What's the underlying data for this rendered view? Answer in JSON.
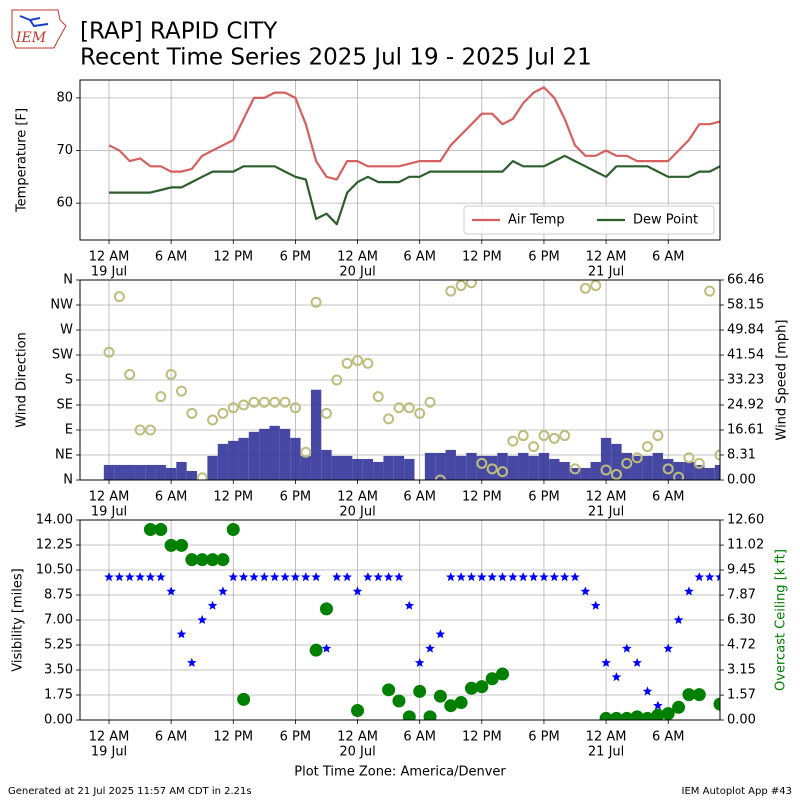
{
  "header": {
    "logo": "IEM",
    "title": "[RAP] RAPID CITY",
    "subtitle": "Recent Time Series 2025 Jul 19 - 2025 Jul 21"
  },
  "footer": {
    "left": "Generated at 21 Jul 2025 11:57 AM CDT in 2.21s",
    "right": "IEM Autoplot App #43"
  },
  "chart_data": [
    {
      "type": "line",
      "ylabel": "Temperature [F]",
      "grid": true,
      "legend": "lower right",
      "xlim": [
        -2.8,
        59
      ],
      "xticks": [
        {
          "value": 0,
          "label": "12 AM"
        },
        {
          "value": 6,
          "label": "6 AM"
        },
        {
          "value": 12,
          "label": "12 PM"
        },
        {
          "value": 18,
          "label": "6 PM"
        },
        {
          "value": 24,
          "label": "12 AM"
        },
        {
          "value": 30,
          "label": "6 AM"
        },
        {
          "value": 36,
          "label": "12 PM"
        },
        {
          "value": 42,
          "label": "6 PM"
        },
        {
          "value": 48,
          "label": "12 AM"
        },
        {
          "value": 54,
          "label": "6 AM"
        }
      ],
      "xtick_dates": [
        {
          "value": 0,
          "label": "19 Jul"
        },
        {
          "value": 24,
          "label": "20 Jul"
        },
        {
          "value": 48,
          "label": "21 Jul"
        }
      ],
      "ylim": [
        53,
        83.4
      ],
      "yticks": [
        60,
        70,
        80
      ],
      "x": [
        0,
        1,
        2,
        3,
        4,
        5,
        6,
        7,
        8,
        9,
        10,
        11,
        12,
        13,
        14,
        15,
        16,
        17,
        18,
        19,
        20,
        21,
        22,
        23,
        24,
        25,
        26,
        27,
        28,
        29,
        30,
        31,
        32,
        33,
        34,
        35,
        36,
        37,
        38,
        39,
        40,
        41,
        42,
        43,
        44,
        45,
        46,
        47,
        48,
        49,
        50,
        51,
        52,
        53,
        54,
        55,
        56,
        57,
        58,
        59
      ],
      "series": [
        {
          "name": "Air Temp",
          "color": "#d65f5f",
          "values": [
            71,
            70,
            68,
            68.5,
            67,
            67,
            66,
            66,
            66.5,
            69,
            70,
            71,
            72,
            76,
            80,
            80,
            81,
            81,
            80,
            75,
            68,
            65,
            64.5,
            68,
            68,
            67,
            67,
            67,
            67,
            67.5,
            68,
            68,
            68,
            71,
            73,
            75,
            77,
            77,
            75,
            76,
            79,
            81,
            82,
            80,
            76,
            71,
            69,
            69,
            70,
            69,
            69,
            68,
            68,
            68,
            68,
            70,
            72,
            75,
            75,
            75.5
          ]
        },
        {
          "name": "Dew Point",
          "color": "#2e5e2e",
          "values": [
            62,
            62,
            62,
            62,
            62,
            62.5,
            63,
            63,
            64,
            65,
            66,
            66,
            66,
            67,
            67,
            67,
            67,
            66,
            65,
            64.5,
            57,
            58,
            56,
            62,
            64,
            65,
            64,
            64,
            64,
            65,
            65,
            66,
            66,
            66,
            66,
            66,
            66,
            66,
            66,
            68,
            67,
            67,
            67,
            68,
            69,
            68,
            67,
            66,
            65,
            67,
            67,
            67,
            67,
            66,
            65,
            65,
            65,
            66,
            66,
            67
          ]
        }
      ]
    },
    {
      "type": "scatter",
      "ylabel": "Wind Direction",
      "y2label": "Wind Speed [mph]",
      "grid": true,
      "xlim": [
        -2.8,
        59
      ],
      "xticks": [
        {
          "value": 0,
          "label": "12 AM"
        },
        {
          "value": 6,
          "label": "6 AM"
        },
        {
          "value": 12,
          "label": "12 PM"
        },
        {
          "value": 18,
          "label": "6 PM"
        },
        {
          "value": 24,
          "label": "12 AM"
        },
        {
          "value": 30,
          "label": "6 AM"
        },
        {
          "value": 36,
          "label": "12 PM"
        },
        {
          "value": 42,
          "label": "6 PM"
        },
        {
          "value": 48,
          "label": "12 AM"
        },
        {
          "value": 54,
          "label": "6 AM"
        }
      ],
      "xtick_dates": [
        {
          "value": 0,
          "label": "19 Jul"
        },
        {
          "value": 24,
          "label": "20 Jul"
        },
        {
          "value": 48,
          "label": "21 Jul"
        }
      ],
      "ylim": [
        0,
        360
      ],
      "yticks": [
        {
          "value": 0,
          "label": "N"
        },
        {
          "value": 45,
          "label": "NE"
        },
        {
          "value": 90,
          "label": "E"
        },
        {
          "value": 135,
          "label": "SE"
        },
        {
          "value": 180,
          "label": "S"
        },
        {
          "value": 225,
          "label": "SW"
        },
        {
          "value": 270,
          "label": "W"
        },
        {
          "value": 315,
          "label": "NW"
        },
        {
          "value": 360,
          "label": "N"
        }
      ],
      "y2lim": [
        0,
        66.46
      ],
      "y2ticks": [
        {
          "value": 0,
          "label": "0.00"
        },
        8.31,
        16.61,
        24.92,
        33.23,
        41.54,
        49.84,
        58.15,
        66.46
      ],
      "x": [
        0,
        1,
        2,
        3,
        4,
        5,
        6,
        7,
        8,
        9,
        10,
        11,
        12,
        13,
        14,
        15,
        16,
        17,
        18,
        19,
        20,
        21,
        22,
        23,
        24,
        25,
        26,
        27,
        28,
        29,
        30,
        31,
        32,
        33,
        34,
        35,
        36,
        37,
        38,
        39,
        40,
        41,
        42,
        43,
        44,
        45,
        46,
        47,
        48,
        49,
        50,
        51,
        52,
        53,
        54,
        55,
        56,
        57,
        58,
        59
      ],
      "series": [
        {
          "marker": "bar",
          "axis": "y2",
          "color": "#33339a",
          "values": [
            5,
            5,
            5,
            5,
            5,
            5,
            4,
            6,
            3,
            0,
            8,
            12,
            13,
            14,
            16,
            17,
            18,
            17,
            14,
            8,
            30,
            10,
            8,
            8,
            7,
            7,
            6,
            8,
            8,
            7,
            0,
            9,
            9,
            10,
            8,
            9,
            8,
            8,
            9,
            8,
            9,
            8,
            9,
            7,
            6,
            4,
            4,
            6,
            14,
            12,
            9,
            8,
            8,
            9,
            7,
            6,
            6,
            5,
            4,
            5
          ]
        },
        {
          "marker": "circle",
          "color": "#bdbd7d",
          "values": [
            230,
            330,
            190,
            90,
            90,
            150,
            190,
            160,
            120,
            4,
            108,
            120,
            130,
            135,
            140,
            140,
            140,
            140,
            130,
            50,
            320,
            120,
            180,
            210,
            215,
            210,
            150,
            110,
            130,
            130,
            120,
            140,
            0,
            340,
            350,
            355,
            30,
            20,
            15,
            70,
            80,
            60,
            80,
            75,
            80,
            20,
            345,
            350,
            18,
            10,
            30,
            40,
            60,
            80,
            20,
            5,
            40,
            30,
            340,
            45
          ]
        }
      ]
    },
    {
      "type": "scatter",
      "ylabel": "Visibility [miles]",
      "y2label": "Overcast Ceiling [k ft]",
      "y2label_color": "#008000",
      "grid": true,
      "xlabel": "Plot Time Zone: America/Denver",
      "xlim": [
        -2.8,
        59
      ],
      "xticks": [
        {
          "value": 0,
          "label": "12 AM"
        },
        {
          "value": 6,
          "label": "6 AM"
        },
        {
          "value": 12,
          "label": "12 PM"
        },
        {
          "value": 18,
          "label": "6 PM"
        },
        {
          "value": 24,
          "label": "12 AM"
        },
        {
          "value": 30,
          "label": "6 AM"
        },
        {
          "value": 36,
          "label": "12 PM"
        },
        {
          "value": 42,
          "label": "6 PM"
        },
        {
          "value": 48,
          "label": "12 AM"
        },
        {
          "value": 54,
          "label": "6 AM"
        }
      ],
      "xtick_dates": [
        {
          "value": 0,
          "label": "19 Jul"
        },
        {
          "value": 24,
          "label": "20 Jul"
        },
        {
          "value": 48,
          "label": "21 Jul"
        }
      ],
      "ylim": [
        0,
        14
      ],
      "yticks": [
        {
          "value": 0,
          "label": "0.00"
        },
        1.75,
        {
          "value": 3.5,
          "label": "3.50"
        },
        5.25,
        {
          "value": 7,
          "label": "7.00"
        },
        8.75,
        {
          "value": 10.5,
          "label": "10.50"
        },
        12.25,
        {
          "value": 14,
          "label": "14.00"
        }
      ],
      "y2lim": [
        0,
        12.6
      ],
      "y2ticks": [
        {
          "value": 0,
          "label": "0.00"
        },
        1.57,
        3.15,
        4.72,
        {
          "value": 6.3,
          "label": "6.30"
        },
        7.87,
        9.45,
        11.02,
        {
          "value": 12.6,
          "label": "12.60"
        }
      ],
      "x": [
        0,
        1,
        2,
        3,
        4,
        5,
        6,
        7,
        8,
        9,
        10,
        11,
        12,
        13,
        14,
        15,
        16,
        17,
        18,
        19,
        20,
        21,
        22,
        23,
        24,
        25,
        26,
        27,
        28,
        29,
        30,
        31,
        32,
        33,
        34,
        35,
        36,
        37,
        38,
        39,
        40,
        41,
        42,
        43,
        44,
        45,
        46,
        47,
        48,
        49,
        50,
        51,
        52,
        53,
        54,
        55,
        56,
        57,
        58,
        59
      ],
      "series": [
        {
          "marker": "star",
          "color": "#0000ff",
          "values": [
            10,
            10,
            10,
            10,
            10,
            10,
            9,
            6,
            4,
            7,
            8,
            9,
            10,
            10,
            10,
            10,
            10,
            10,
            10,
            10,
            10,
            5,
            10,
            10,
            9,
            10,
            10,
            10,
            10,
            8,
            4,
            5,
            6,
            10,
            10,
            10,
            10,
            10,
            10,
            10,
            10,
            10,
            10,
            10,
            10,
            10,
            9,
            8,
            4,
            3,
            5,
            4,
            2,
            1,
            5,
            7,
            9,
            10,
            10,
            10
          ]
        },
        {
          "marker": "circle",
          "fill": true,
          "axis": "y2",
          "color": "#008000",
          "values": [
            null,
            null,
            null,
            null,
            12,
            12,
            11,
            11,
            10.1,
            10.1,
            10.1,
            10.1,
            12,
            1.3,
            null,
            null,
            null,
            null,
            null,
            null,
            4.4,
            7,
            null,
            null,
            0.6,
            null,
            null,
            1.9,
            1.2,
            0.2,
            1.8,
            0.2,
            1.5,
            0.9,
            1.1,
            2,
            2.1,
            2.6,
            2.9,
            null,
            null,
            null,
            null,
            null,
            null,
            null,
            null,
            null,
            0.1,
            0.1,
            0.1,
            0.2,
            0.1,
            0.3,
            0.4,
            0.8,
            1.6,
            1.6,
            null,
            1
          ]
        }
      ]
    }
  ]
}
